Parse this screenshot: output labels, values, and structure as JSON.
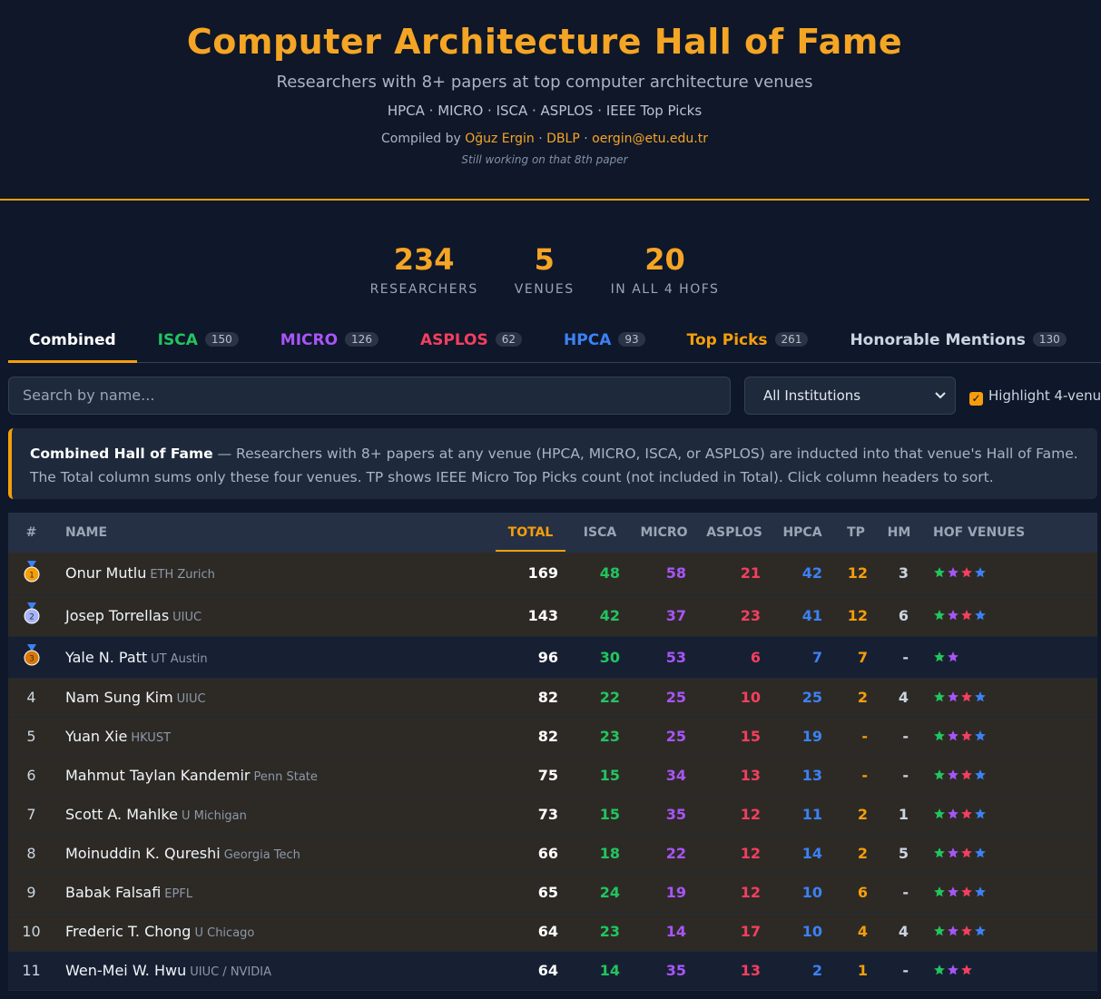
{
  "header": {
    "title": "Computer Architecture Hall of Fame",
    "subtitle": "Researchers with 8+ papers at top computer architecture venues",
    "venues": "HPCA · MICRO · ISCA · ASPLOS · IEEE Top Picks",
    "compiled_prefix": "Compiled by",
    "author": "Oğuz Ergin",
    "sep1": "·",
    "dblp": "DBLP",
    "sep2": "·",
    "email": "oergin@etu.edu.tr",
    "tagline": "Still working on that 8th paper"
  },
  "stats": [
    {
      "value": "234",
      "label": "RESEARCHERS"
    },
    {
      "value": "5",
      "label": "VENUES"
    },
    {
      "value": "20",
      "label": "IN ALL 4 HOFS"
    }
  ],
  "tabs": [
    {
      "label": "Combined",
      "color": "#ffffff"
    },
    {
      "label": "ISCA",
      "count": "150",
      "color": "#22c55e"
    },
    {
      "label": "MICRO",
      "count": "126",
      "color": "#a855f7"
    },
    {
      "label": "ASPLOS",
      "count": "62",
      "color": "#f43f5e"
    },
    {
      "label": "HPCA",
      "count": "93",
      "color": "#3b82f6"
    },
    {
      "label": "Top Picks",
      "count": "261",
      "color": "#f59e0b"
    },
    {
      "label": "Honorable Mentions",
      "count": "130",
      "color": "#cbd5e1"
    }
  ],
  "filters": {
    "search_placeholder": "Search by name...",
    "institution": "All Institutions",
    "highlight": "Highlight 4-venu"
  },
  "info": {
    "bold": "Combined Hall of Fame",
    "text": " — Researchers with 8+ papers at any venue (HPCA, MICRO, ISCA, or ASPLOS) are inducted into that venue's Hall of Fame. The Total column sums only these four venues. TP shows IEEE Micro Top Picks count (not included in Total). Click column headers to sort."
  },
  "table": {
    "headers": [
      "#",
      "NAME",
      "TOTAL",
      "ISCA",
      "MICRO",
      "ASPLOS",
      "HPCA",
      "TP",
      "HM",
      "HOF VENUES"
    ],
    "column_colors": [
      "#cbd5e1",
      "#ffffff",
      "#ffffff",
      "#22c55e",
      "#a855f7",
      "#f43f5e",
      "#3b82f6",
      "#f59e0b",
      "#cbd5e1"
    ],
    "rows": [
      {
        "rank": "1",
        "name": "Onur Mutlu",
        "inst": "ETH Zurich",
        "cells": [
          "169",
          "48",
          "58",
          "21",
          "42",
          "12",
          "3"
        ],
        "hof": [
          "#22c55e",
          "#a855f7",
          "#f43f5e",
          "#3b82f6"
        ],
        "highlight": true
      },
      {
        "rank": "2",
        "name": "Josep Torrellas",
        "inst": "UIUC",
        "cells": [
          "143",
          "42",
          "37",
          "23",
          "41",
          "12",
          "6"
        ],
        "hof": [
          "#22c55e",
          "#a855f7",
          "#f43f5e",
          "#3b82f6"
        ],
        "highlight": true
      },
      {
        "rank": "3",
        "name": "Yale N. Patt",
        "inst": "UT Austin",
        "cells": [
          "96",
          "30",
          "53",
          "6",
          "7",
          "7",
          "-"
        ],
        "hof": [
          "#22c55e",
          "#a855f7"
        ],
        "highlight": false
      },
      {
        "rank": "4",
        "name": "Nam Sung Kim",
        "inst": "UIUC",
        "cells": [
          "82",
          "22",
          "25",
          "10",
          "25",
          "2",
          "4"
        ],
        "hof": [
          "#22c55e",
          "#a855f7",
          "#f43f5e",
          "#3b82f6"
        ],
        "highlight": true
      },
      {
        "rank": "5",
        "name": "Yuan Xie",
        "inst": "HKUST",
        "cells": [
          "82",
          "23",
          "25",
          "15",
          "19",
          "-",
          "-"
        ],
        "hof": [
          "#22c55e",
          "#a855f7",
          "#f43f5e",
          "#3b82f6"
        ],
        "highlight": true
      },
      {
        "rank": "6",
        "name": "Mahmut Taylan Kandemir",
        "inst": "Penn State",
        "cells": [
          "75",
          "15",
          "34",
          "13",
          "13",
          "-",
          "-"
        ],
        "hof": [
          "#22c55e",
          "#a855f7",
          "#f43f5e",
          "#3b82f6"
        ],
        "highlight": true
      },
      {
        "rank": "7",
        "name": "Scott A. Mahlke",
        "inst": "U Michigan",
        "cells": [
          "73",
          "15",
          "35",
          "12",
          "11",
          "2",
          "1"
        ],
        "hof": [
          "#22c55e",
          "#a855f7",
          "#f43f5e",
          "#3b82f6"
        ],
        "highlight": true
      },
      {
        "rank": "8",
        "name": "Moinuddin K. Qureshi",
        "inst": "Georgia Tech",
        "cells": [
          "66",
          "18",
          "22",
          "12",
          "14",
          "2",
          "5"
        ],
        "hof": [
          "#22c55e",
          "#a855f7",
          "#f43f5e",
          "#3b82f6"
        ],
        "highlight": true
      },
      {
        "rank": "9",
        "name": "Babak Falsafi",
        "inst": "EPFL",
        "cells": [
          "65",
          "24",
          "19",
          "12",
          "10",
          "6",
          "-"
        ],
        "hof": [
          "#22c55e",
          "#a855f7",
          "#f43f5e",
          "#3b82f6"
        ],
        "highlight": true
      },
      {
        "rank": "10",
        "name": "Frederic T. Chong",
        "inst": "U Chicago",
        "cells": [
          "64",
          "23",
          "14",
          "17",
          "10",
          "4",
          "4"
        ],
        "hof": [
          "#22c55e",
          "#a855f7",
          "#f43f5e",
          "#3b82f6"
        ],
        "highlight": true
      },
      {
        "rank": "11",
        "name": "Wen-Mei W. Hwu",
        "inst": "UIUC / NVIDIA",
        "cells": [
          "64",
          "14",
          "35",
          "13",
          "2",
          "1",
          "-"
        ],
        "hof": [
          "#22c55e",
          "#a855f7",
          "#f43f5e"
        ],
        "highlight": false
      }
    ]
  }
}
